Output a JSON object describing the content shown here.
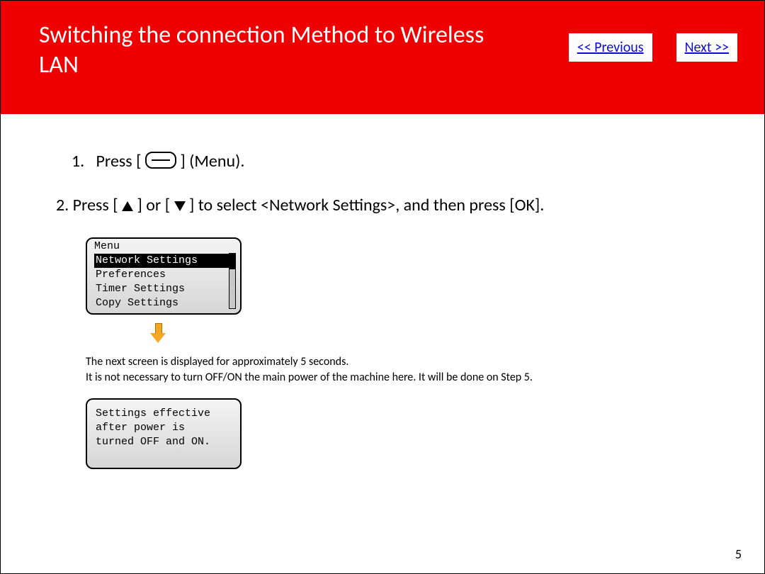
{
  "colors": {
    "header_bg": "#ee0000",
    "header_text": "#ffffff",
    "nav_bg": "#ffffff",
    "nav_text": "#0b0bd0",
    "body_text": "#000000",
    "lcd_border": "#000000",
    "lcd_bg_top": "#f4f4f4",
    "lcd_bg_bottom": "#d6d6d6",
    "lcd_selected_bg": "#000000",
    "lcd_selected_text": "#ffffff",
    "arrow_fill": "#f6a721",
    "arrow_stroke": "#b06e00"
  },
  "header": {
    "title": "Switching the connection Method to Wireless LAN",
    "prev_label": "<< Previous",
    "next_label": "Next >>"
  },
  "steps": {
    "s1_num": "1.",
    "s1_before": "Press [",
    "s1_after": "] (Menu).",
    "s2_text_a": "2. Press [",
    "s2_text_b": "] or [",
    "s2_text_c": "] to select <Network Settings>, and then press [OK]."
  },
  "lcd1": {
    "title": "Menu",
    "rows": [
      {
        "label": "Network Settings",
        "selected": true
      },
      {
        "label": "Preferences",
        "selected": false
      },
      {
        "label": "Timer Settings",
        "selected": false
      },
      {
        "label": "Copy Settings",
        "selected": false
      }
    ]
  },
  "note": {
    "line1": "The next screen is displayed for approximately 5 seconds.",
    "line2": "It is not necessary to turn OFF/ON the main power of the machine here. It will be done on Step 5."
  },
  "lcd2": {
    "line1": "Settings effective",
    "line2": "after power is",
    "line3": "turned OFF and ON."
  },
  "page_number": "5"
}
